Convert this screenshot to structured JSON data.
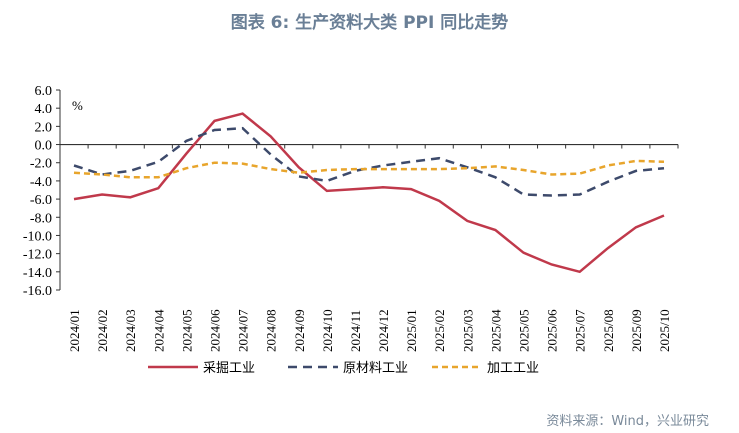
{
  "title": "图表 6:  生产资料大类 PPI 同比走势",
  "source": "资料来源：Wind，兴业研究",
  "chart_data": {
    "type": "line",
    "title": "图表 6:  生产资料大类 PPI 同比走势",
    "unit_label": "%",
    "ylim": [
      -16,
      6
    ],
    "yticks": [
      "6.0",
      "4.0",
      "2.0",
      "0.0",
      "-2.0",
      "-4.0",
      "-6.0",
      "-8.0",
      "-10.0",
      "-12.0",
      "-14.0",
      "-16.0"
    ],
    "categories": [
      "2024/01",
      "2024/02",
      "2024/03",
      "2024/04",
      "2024/05",
      "2024/06",
      "2024/07",
      "2024/08",
      "2024/09",
      "2024/10",
      "2024/11",
      "2024/12",
      "2025/01",
      "2025/02",
      "2025/03",
      "2025/04",
      "2025/05",
      "2025/06",
      "2025/07",
      "2025/08",
      "2025/09",
      "2025/10"
    ],
    "grid": false,
    "legend_position": "bottom",
    "series": [
      {
        "name": "采掘工业",
        "color": "#c0394b",
        "style": "solid",
        "values": [
          -6.0,
          -5.5,
          -5.8,
          -4.8,
          -1.0,
          2.6,
          3.4,
          0.9,
          -2.5,
          -5.1,
          -4.9,
          -4.7,
          -4.9,
          -6.2,
          -8.4,
          -9.4,
          -11.9,
          -13.2,
          -14.0,
          -11.4,
          -9.1,
          -7.8
        ]
      },
      {
        "name": "原材料工业",
        "color": "#3d4a6b",
        "style": "dashed",
        "values": [
          -2.3,
          -3.3,
          -2.9,
          -1.9,
          0.4,
          1.6,
          1.8,
          -1.1,
          -3.5,
          -4.0,
          -2.9,
          -2.3,
          -1.9,
          -1.5,
          -2.5,
          -3.6,
          -5.5,
          -5.6,
          -5.5,
          -4.1,
          -2.9,
          -2.6
        ]
      },
      {
        "name": "加工工业",
        "color": "#e8a52c",
        "style": "dotted",
        "values": [
          -3.1,
          -3.3,
          -3.6,
          -3.6,
          -2.6,
          -2.0,
          -2.1,
          -2.7,
          -3.1,
          -2.8,
          -2.7,
          -2.7,
          -2.7,
          -2.7,
          -2.6,
          -2.4,
          -2.8,
          -3.3,
          -3.2,
          -2.3,
          -1.8,
          -1.9
        ]
      }
    ]
  }
}
